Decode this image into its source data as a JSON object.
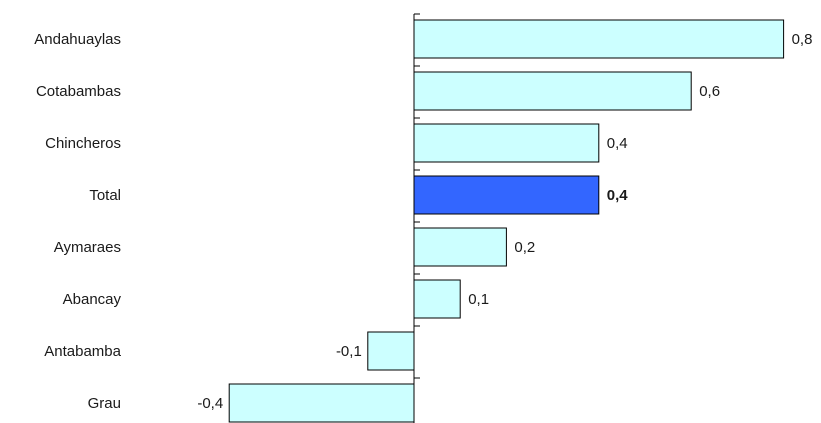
{
  "chart_data": {
    "type": "bar",
    "orientation": "horizontal",
    "categories": [
      "Andahuaylas",
      "Cotabambas",
      "Chincheros",
      "Total",
      "Aymaraes",
      "Abancay",
      "Antabamba",
      "Grau"
    ],
    "values": [
      0.8,
      0.6,
      0.4,
      0.4,
      0.2,
      0.1,
      -0.1,
      -0.4
    ],
    "value_labels": [
      "0,8",
      "0,6",
      "0,4",
      "0,4",
      "0,2",
      "0,1",
      "-0,1",
      "-0,4"
    ],
    "highlight_category": "Total",
    "title": "",
    "xlabel": "",
    "ylabel": "",
    "xlim": [
      -0.4,
      0.8
    ],
    "grid": false,
    "legend": "none",
    "colors": {
      "bar": "#ccffff",
      "bar_highlight": "#3366ff",
      "stroke": "#000000"
    }
  }
}
